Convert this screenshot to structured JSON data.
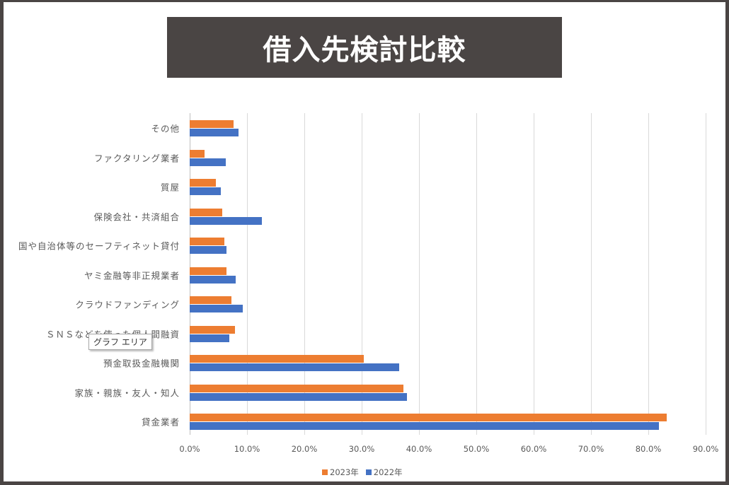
{
  "title": "借入先検討比較",
  "tooltip": "グラフ エリア",
  "colors": {
    "series_2023": "#ed7d31",
    "series_2022": "#4472c4",
    "banner": "#4a4544"
  },
  "chart_data": {
    "type": "bar",
    "orientation": "horizontal",
    "title": "借入先検討比較",
    "xlabel": "",
    "ylabel": "",
    "xlim": [
      0,
      90
    ],
    "x_ticks": [
      "0.0%",
      "10.0%",
      "20.0%",
      "30.0%",
      "40.0%",
      "50.0%",
      "60.0%",
      "70.0%",
      "80.0%",
      "90.0%"
    ],
    "grid": "vertical",
    "legend_position": "bottom",
    "categories": [
      "その他",
      "ファクタリング業者",
      "質屋",
      "保険会社・共済組合",
      "国や自治体等のセーフティネット貸付",
      "ヤミ金融等非正規業者",
      "クラウドファンディング",
      "ＳＮＳなどを使った個人間融資",
      "預金取扱金融機関",
      "家族・親族・友人・知人",
      "貸金業者"
    ],
    "series": [
      {
        "name": "2023年",
        "color": "#ed7d31",
        "values": [
          7.7,
          2.6,
          4.6,
          5.7,
          6.0,
          6.4,
          7.3,
          7.9,
          30.4,
          37.3,
          83.2
        ]
      },
      {
        "name": "2022年",
        "color": "#4472c4",
        "values": [
          8.5,
          6.3,
          5.4,
          12.6,
          6.4,
          8.0,
          9.3,
          6.9,
          36.5,
          37.9,
          81.9
        ]
      }
    ]
  },
  "labels": {
    "categories_display": [
      "その他",
      "ファクタリング業者",
      "質屋",
      "保険会社・共済組合",
      "国や自治体等のセーフティネット貸付",
      "ヤミ金融等非正規業者",
      "クラウドファンディング",
      "ＳＮＳなどを使った個人間融資",
      "預金取扱金融機関",
      "家族・親族・友人・知人",
      "貸金業者"
    ]
  }
}
